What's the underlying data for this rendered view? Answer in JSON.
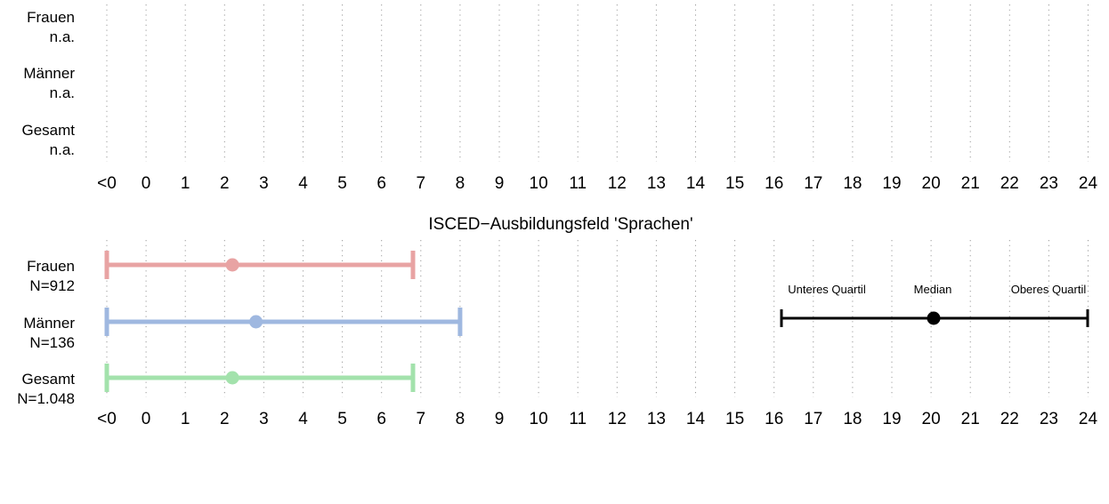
{
  "chart_data": [
    {
      "type": "interval",
      "title": "",
      "x_ticks": [
        "<0",
        "0",
        "1",
        "2",
        "3",
        "4",
        "5",
        "6",
        "7",
        "8",
        "9",
        "10",
        "11",
        "12",
        "13",
        "14",
        "15",
        "16",
        "17",
        "18",
        "19",
        "20",
        "21",
        "22",
        "23",
        "24"
      ],
      "rows": [
        {
          "name": "Frauen",
          "n_label": "n.a.",
          "color": "#e8a3a3",
          "lower": null,
          "median": null,
          "upper": null
        },
        {
          "name": "Männer",
          "n_label": "n.a.",
          "color": "#9fb8e0",
          "lower": null,
          "median": null,
          "upper": null
        },
        {
          "name": "Gesamt",
          "n_label": "n.a.",
          "color": "#a3e2ac",
          "lower": null,
          "median": null,
          "upper": null
        }
      ]
    },
    {
      "type": "interval",
      "title": "ISCED−Ausbildungsfeld 'Sprachen'",
      "x_ticks": [
        "<0",
        "0",
        "1",
        "2",
        "3",
        "4",
        "5",
        "6",
        "7",
        "8",
        "9",
        "10",
        "11",
        "12",
        "13",
        "14",
        "15",
        "16",
        "17",
        "18",
        "19",
        "20",
        "21",
        "22",
        "23",
        "24"
      ],
      "rows": [
        {
          "name": "Frauen",
          "n_label": "N=912",
          "color": "#e8a3a3",
          "lower": -1,
          "median": 2.2,
          "upper": 6.8
        },
        {
          "name": "Männer",
          "n_label": "N=136",
          "color": "#9fb8e0",
          "lower": -1,
          "median": 2.8,
          "upper": 8.0
        },
        {
          "name": "Gesamt",
          "n_label": "N=1.048",
          "color": "#a3e2ac",
          "lower": -1,
          "median": 2.2,
          "upper": 6.8
        }
      ]
    }
  ],
  "legend": {
    "lower_label": "Unteres Quartil",
    "median_label": "Median",
    "upper_label": "Oberes Quartil",
    "color": "#000000"
  }
}
